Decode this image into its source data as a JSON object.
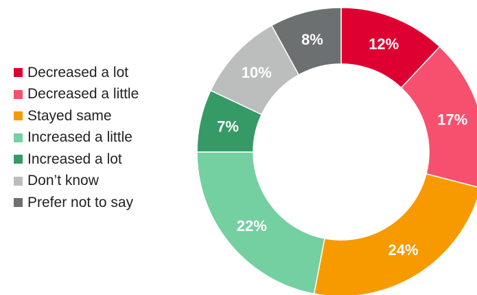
{
  "chart_data": {
    "type": "pie",
    "variant": "donut",
    "title": "",
    "legend_position": "left",
    "categories": [
      "Decreased a lot",
      "Decreased a little",
      "Stayed same",
      "Increased a little",
      "Increased a lot",
      "Don’t know",
      "Prefer not to say"
    ],
    "values": [
      12,
      17,
      24,
      22,
      7,
      10,
      8
    ],
    "labels": [
      "12%",
      "17%",
      "24%",
      "22%",
      "7%",
      "10%",
      "8%"
    ],
    "colors": [
      "#de0030",
      "#f7506f",
      "#f79a00",
      "#74cfa1",
      "#369a66",
      "#bcbdbd",
      "#6c7070"
    ]
  }
}
